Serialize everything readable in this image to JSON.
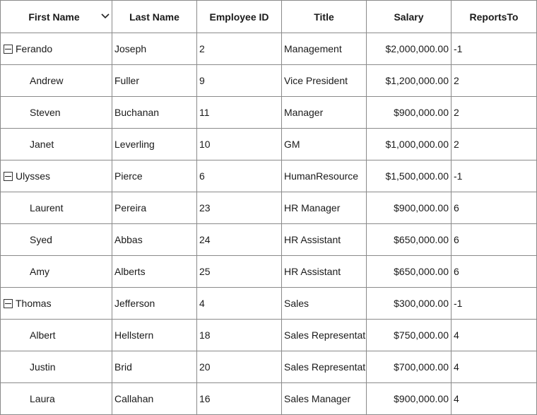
{
  "columns": [
    "First Name",
    "Last Name",
    "Employee ID",
    "Title",
    "Salary",
    "ReportsTo"
  ],
  "icons": {
    "filter": "chevron-down-icon",
    "expander": "minus-box-icon"
  },
  "rows": [
    {
      "level": 0,
      "expanded": true,
      "first": "Ferando",
      "last": "Joseph",
      "id": "2",
      "title": "Management",
      "salary": "$2,000,000.00",
      "reports": "-1"
    },
    {
      "level": 1,
      "first": "Andrew",
      "last": "Fuller",
      "id": "9",
      "title": "Vice President",
      "salary": "$1,200,000.00",
      "reports": "2"
    },
    {
      "level": 1,
      "first": "Steven",
      "last": "Buchanan",
      "id": "11",
      "title": "Manager",
      "salary": "$900,000.00",
      "reports": "2"
    },
    {
      "level": 1,
      "first": "Janet",
      "last": "Leverling",
      "id": "10",
      "title": "GM",
      "salary": "$1,000,000.00",
      "reports": "2"
    },
    {
      "level": 0,
      "expanded": true,
      "first": "Ulysses",
      "last": "Pierce",
      "id": "6",
      "title": "HumanResource",
      "salary": "$1,500,000.00",
      "reports": "-1"
    },
    {
      "level": 1,
      "first": "Laurent",
      "last": "Pereira",
      "id": "23",
      "title": "HR Manager",
      "salary": "$900,000.00",
      "reports": "6"
    },
    {
      "level": 1,
      "first": "Syed",
      "last": "Abbas",
      "id": "24",
      "title": "HR Assistant",
      "salary": "$650,000.00",
      "reports": "6"
    },
    {
      "level": 1,
      "first": "Amy",
      "last": "Alberts",
      "id": "25",
      "title": "HR Assistant",
      "salary": "$650,000.00",
      "reports": "6"
    },
    {
      "level": 0,
      "expanded": true,
      "first": "Thomas",
      "last": "Jefferson",
      "id": "4",
      "title": "Sales",
      "salary": "$300,000.00",
      "reports": "-1"
    },
    {
      "level": 1,
      "first": "Albert",
      "last": "Hellstern",
      "id": "18",
      "title": "Sales Representat",
      "salary": "$750,000.00",
      "reports": "4"
    },
    {
      "level": 1,
      "first": "Justin",
      "last": "Brid",
      "id": "20",
      "title": "Sales Representat",
      "salary": "$700,000.00",
      "reports": "4"
    },
    {
      "level": 1,
      "first": "Laura",
      "last": "Callahan",
      "id": "16",
      "title": "Sales Manager",
      "salary": "$900,000.00",
      "reports": "4"
    }
  ]
}
